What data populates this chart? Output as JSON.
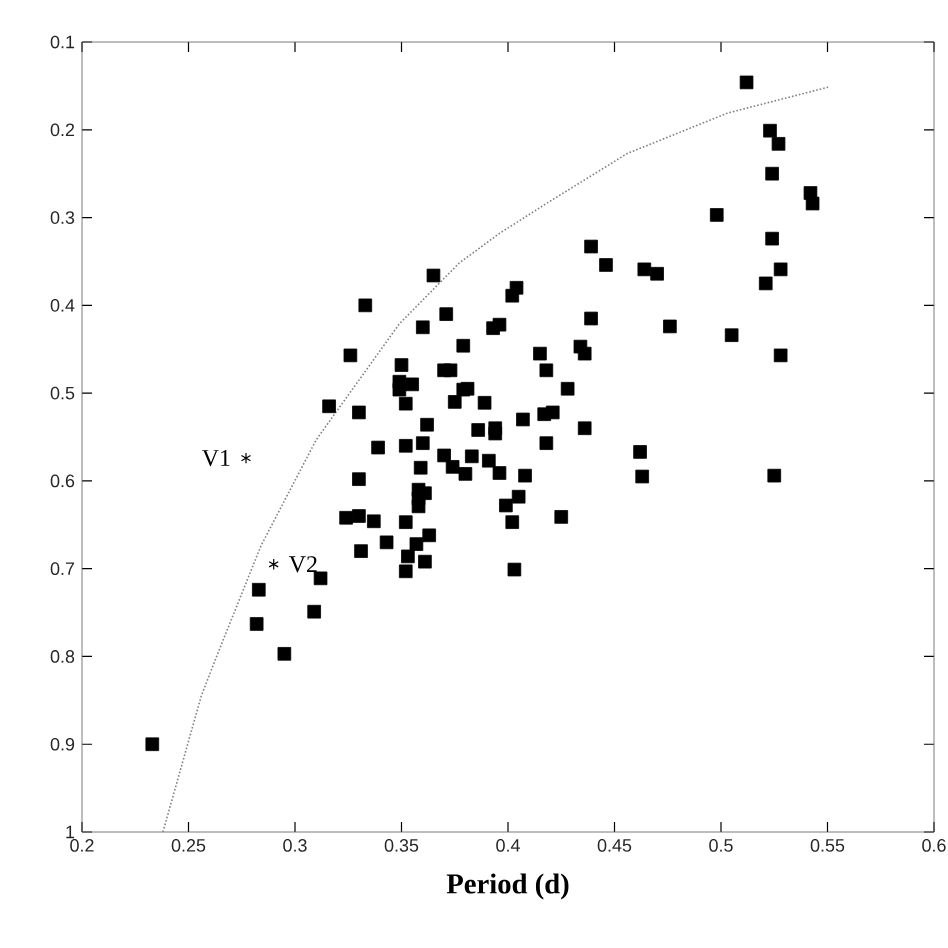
{
  "chart_data": {
    "type": "scatter",
    "xlabel": "Period (d)",
    "xlim": [
      0.2,
      0.6
    ],
    "ylim": [
      1,
      0.1
    ],
    "xticks": [
      0.2,
      0.25,
      0.3,
      0.35,
      0.4,
      0.45,
      0.5,
      0.55,
      0.6
    ],
    "yticks": [
      0.1,
      0.2,
      0.3,
      0.4,
      0.5,
      0.6,
      0.7,
      0.8,
      0.9,
      1
    ],
    "annotations": [
      {
        "text": "V1",
        "x": 0.277,
        "y": 0.574
      },
      {
        "text": "V2",
        "x": 0.29,
        "y": 0.695
      }
    ],
    "series": [
      {
        "type": "scatter",
        "color": "#000000",
        "marker": "cross",
        "x": [
          0.277,
          0.29
        ],
        "values": [
          0.574,
          0.695
        ]
      },
      {
        "color": "#000000",
        "marker": "square",
        "x": [
          0.512,
          0.523,
          0.527,
          0.524,
          0.542,
          0.543,
          0.498,
          0.524,
          0.528,
          0.521,
          0.528,
          0.439,
          0.446,
          0.464,
          0.47,
          0.404,
          0.402,
          0.439,
          0.476,
          0.505,
          0.393,
          0.396,
          0.379,
          0.415,
          0.434,
          0.436,
          0.418,
          0.428,
          0.379,
          0.381,
          0.389,
          0.407,
          0.417,
          0.421,
          0.436,
          0.386,
          0.394,
          0.394,
          0.418,
          0.462,
          0.383,
          0.391,
          0.396,
          0.408,
          0.463,
          0.525,
          0.38,
          0.399,
          0.405,
          0.402,
          0.425,
          0.403,
          0.365,
          0.333,
          0.326,
          0.371,
          0.36,
          0.35,
          0.349,
          0.355,
          0.349,
          0.37,
          0.373,
          0.352,
          0.375,
          0.316,
          0.33,
          0.362,
          0.339,
          0.352,
          0.36,
          0.37,
          0.374,
          0.359,
          0.33,
          0.358,
          0.361,
          0.358,
          0.358,
          0.324,
          0.33,
          0.337,
          0.352,
          0.363,
          0.343,
          0.357,
          0.331,
          0.353,
          0.361,
          0.352,
          0.312,
          0.283,
          0.309,
          0.282,
          0.295,
          0.233
        ],
        "values": [
          0.146,
          0.201,
          0.216,
          0.25,
          0.272,
          0.284,
          0.297,
          0.324,
          0.359,
          0.375,
          0.457,
          0.333,
          0.354,
          0.359,
          0.364,
          0.38,
          0.389,
          0.415,
          0.424,
          0.434,
          0.426,
          0.422,
          0.446,
          0.455,
          0.447,
          0.455,
          0.474,
          0.495,
          0.496,
          0.495,
          0.511,
          0.53,
          0.524,
          0.522,
          0.54,
          0.542,
          0.54,
          0.546,
          0.557,
          0.567,
          0.572,
          0.577,
          0.591,
          0.594,
          0.595,
          0.594,
          0.592,
          0.628,
          0.618,
          0.647,
          0.641,
          0.701,
          0.366,
          0.4,
          0.457,
          0.41,
          0.425,
          0.468,
          0.487,
          0.49,
          0.496,
          0.474,
          0.474,
          0.512,
          0.51,
          0.515,
          0.522,
          0.536,
          0.562,
          0.56,
          0.557,
          0.571,
          0.584,
          0.585,
          0.598,
          0.61,
          0.614,
          0.62,
          0.629,
          0.642,
          0.64,
          0.646,
          0.647,
          0.662,
          0.67,
          0.672,
          0.68,
          0.686,
          0.692,
          0.703,
          0.711,
          0.724,
          0.749,
          0.763,
          0.797,
          0.9
        ]
      },
      {
        "type": "line",
        "color": "#808080",
        "line_style": "dotted",
        "marker": "none",
        "x": [
          0.238,
          0.256,
          0.264,
          0.284,
          0.31,
          0.349,
          0.377,
          0.396,
          0.418,
          0.456,
          0.503,
          0.551
        ],
        "values": [
          1.0,
          0.845,
          0.795,
          0.674,
          0.553,
          0.421,
          0.352,
          0.318,
          0.284,
          0.227,
          0.181,
          0.151
        ]
      }
    ]
  }
}
